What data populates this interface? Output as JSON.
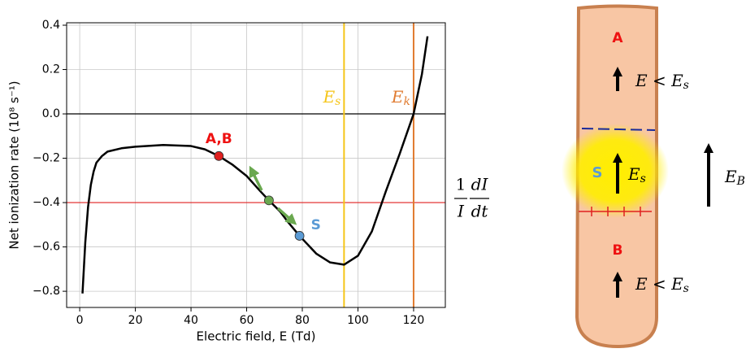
{
  "chart_data": {
    "type": "line",
    "xlabel": "Electric field, E (Td)",
    "ylabel": "Net ionization rate (10⁸ s⁻¹)",
    "xlim": [
      -4.7,
      131.4
    ],
    "ylim": [
      -0.873,
      0.411
    ],
    "xticks": [
      0,
      20,
      40,
      60,
      80,
      100,
      120
    ],
    "yticks": [
      {
        "value": -0.8,
        "label": "−0.8"
      },
      {
        "value": -0.6,
        "label": "−0.6"
      },
      {
        "value": -0.4,
        "label": "−0.4"
      },
      {
        "value": -0.2,
        "label": "−0.2"
      },
      {
        "value": 0,
        "label": "0.0"
      },
      0.2,
      0.4
    ],
    "grid": true,
    "series": [
      {
        "color": "#000000",
        "x": [
          1,
          2,
          3,
          4,
          5,
          6,
          8,
          10,
          15,
          20,
          30,
          40,
          45,
          50,
          55,
          60,
          65,
          68,
          72,
          75,
          79,
          85,
          90,
          95,
          100,
          105,
          110,
          115,
          120,
          123,
          125
        ],
        "values": [
          -0.81,
          -0.58,
          -0.42,
          -0.32,
          -0.26,
          -0.22,
          -0.19,
          -0.17,
          -0.155,
          -0.148,
          -0.14,
          -0.145,
          -0.16,
          -0.19,
          -0.23,
          -0.28,
          -0.35,
          -0.39,
          -0.44,
          -0.49,
          -0.55,
          -0.63,
          -0.67,
          -0.68,
          -0.64,
          -0.53,
          -0.35,
          -0.18,
          0.0,
          0.18,
          0.35
        ]
      }
    ],
    "hlines": [
      {
        "y": 0,
        "color": "#000000"
      },
      {
        "y": -0.4,
        "color": "#e02020"
      }
    ],
    "vlines": [
      {
        "x": 95,
        "color": "#f5c518",
        "label": {
          "text": "E",
          "sub": "s"
        }
      },
      {
        "x": 120,
        "color": "#e07b30",
        "label": {
          "text": "E",
          "sub": "k"
        }
      }
    ],
    "points": [
      {
        "label": "A,B",
        "x": 50,
        "y": -0.19,
        "color": "#e02020",
        "label_color": "#ee1111"
      },
      {
        "x": 68,
        "y": -0.39,
        "color": "#6aa84f"
      },
      {
        "label": "S",
        "x": 79,
        "y": -0.55,
        "color": "#5b9bd5",
        "label_color": "#5b9bd5"
      }
    ],
    "side_formula": {
      "num1": "1",
      "den1": "I",
      "num2": "dI",
      "den2": "dt"
    }
  },
  "diagram": {
    "top_label": "A",
    "top_field": {
      "text": "E < E",
      "sub": "s"
    },
    "middle_label": "S",
    "middle_field": {
      "text": "E",
      "sub": "s"
    },
    "bottom_label": "B",
    "bottom_field": {
      "text": "E < E",
      "sub": "s"
    },
    "external_field": {
      "text": "E",
      "sub": "B"
    }
  }
}
